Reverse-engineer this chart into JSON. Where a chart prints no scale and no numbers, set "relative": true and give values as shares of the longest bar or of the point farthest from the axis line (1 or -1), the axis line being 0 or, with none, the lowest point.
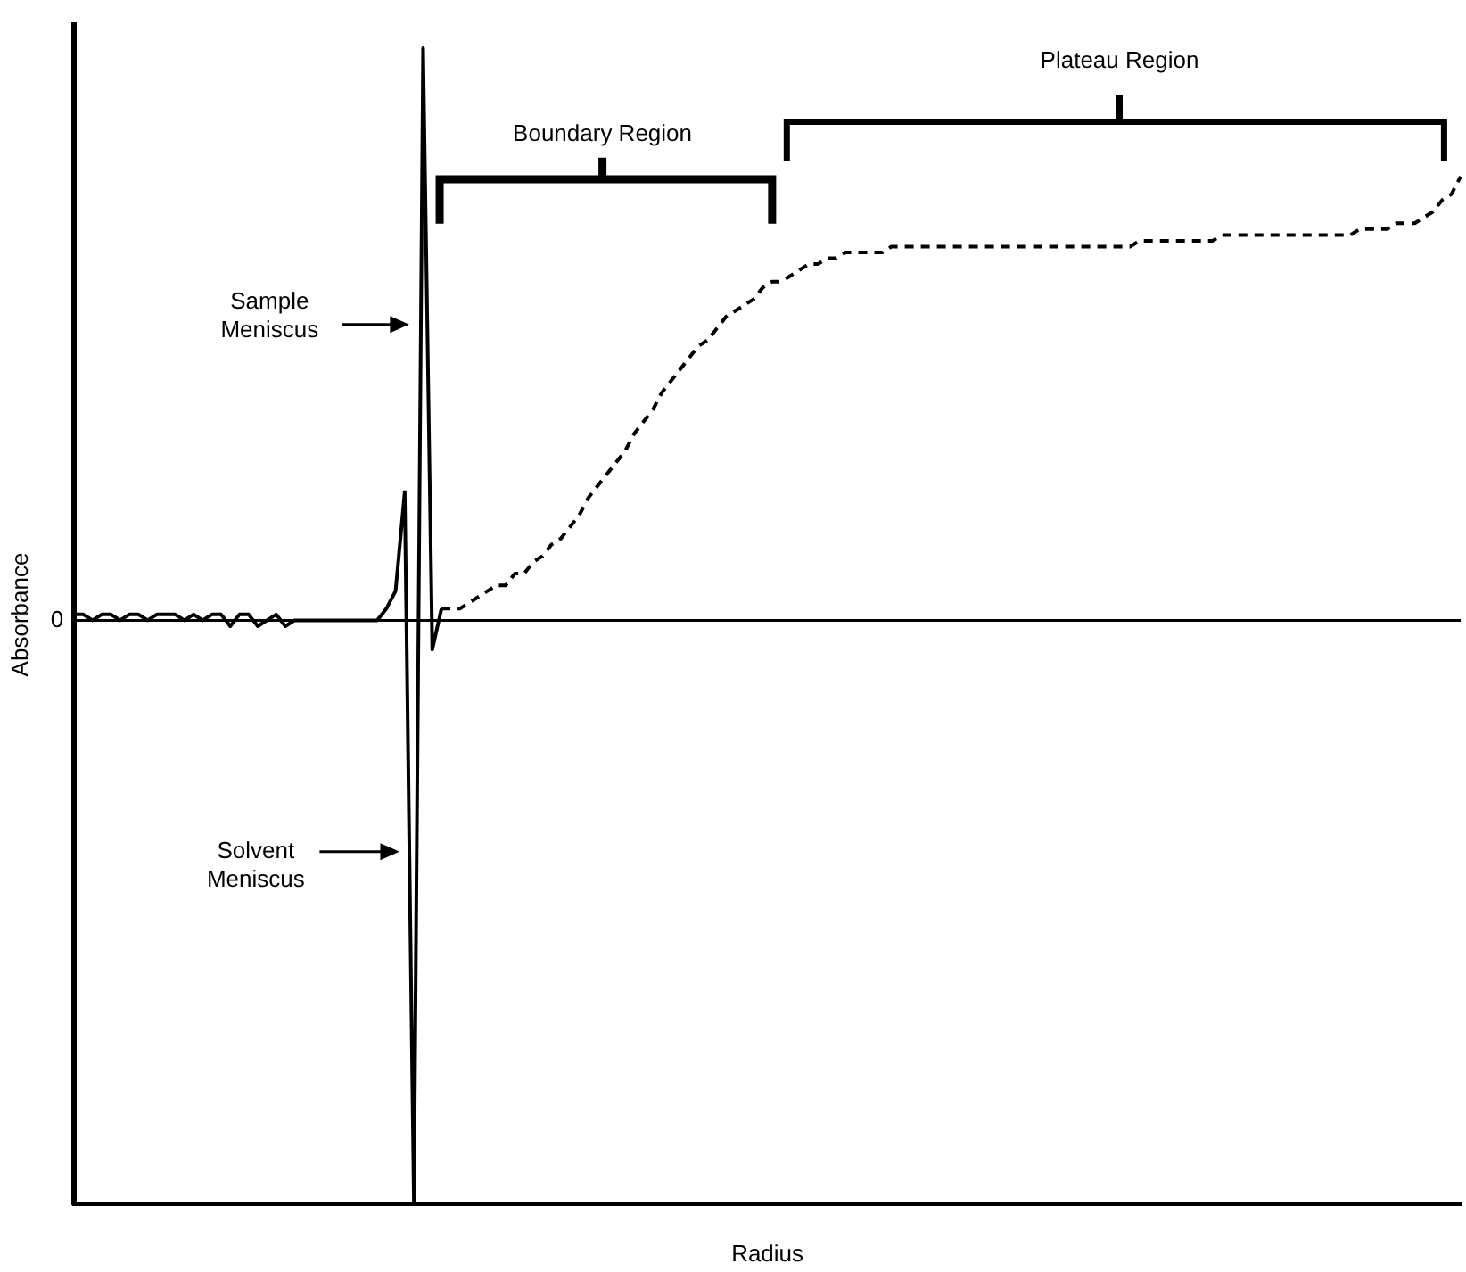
{
  "chart_data": {
    "type": "line",
    "relative": true,
    "xlabel": "Radius",
    "ylabel": "Absorbance",
    "grid": false,
    "legend": false,
    "marker": "none",
    "categories": [
      null,
      null,
      null,
      null,
      null,
      null,
      null,
      null,
      null,
      null,
      null,
      null,
      null,
      null,
      null,
      null,
      null,
      null,
      null,
      null,
      null,
      null,
      null,
      null,
      null,
      null,
      null,
      null,
      null,
      null,
      null,
      null,
      null,
      null,
      null,
      null,
      null,
      null,
      null,
      null,
      null,
      null,
      null,
      null,
      null,
      null,
      null,
      null,
      null,
      null,
      null,
      null,
      null,
      null,
      null,
      null,
      null,
      null,
      null,
      null,
      null,
      null,
      null,
      null,
      null,
      null,
      null,
      null,
      null,
      null,
      null,
      null,
      null,
      null,
      null,
      null,
      null,
      null,
      null,
      null,
      null,
      null,
      null,
      null,
      null,
      null,
      null,
      null,
      null,
      null,
      null,
      null,
      null,
      null,
      null,
      null,
      null,
      null,
      null,
      null,
      null,
      null,
      null,
      null,
      null,
      null,
      null,
      null,
      null,
      null,
      null,
      null,
      null,
      null,
      null,
      null,
      null,
      null,
      null,
      null,
      null,
      null,
      null,
      null,
      null,
      null,
      null,
      null,
      null,
      null,
      null,
      null,
      null,
      null,
      null,
      null,
      null,
      null,
      null,
      null,
      null,
      null,
      null,
      null,
      null,
      null,
      null,
      null,
      null,
      null,
      null,
      null
    ],
    "series": [
      {
        "color": "#000000",
        "line_style": "solid",
        "values": [
          0.01,
          0.01,
          0,
          0.01,
          0.01,
          0,
          0.01,
          0.01,
          0,
          0.01,
          0.01,
          0.01,
          0,
          0.01,
          0,
          0.01,
          0.01,
          -0.01,
          0.01,
          0.01,
          -0.01,
          0,
          0.01,
          -0.01,
          0,
          0,
          0,
          0,
          0,
          0,
          0,
          0,
          0,
          0,
          0.02,
          0.05,
          0.22,
          -1,
          0.98,
          -0.05,
          0.02,
          null,
          null,
          null,
          null,
          null,
          null,
          null,
          null,
          null,
          null,
          null,
          null,
          null,
          null,
          null,
          null,
          null,
          null,
          null,
          null,
          null,
          null,
          null,
          null,
          null,
          null,
          null,
          null,
          null,
          null,
          null,
          null,
          null,
          null,
          null,
          null,
          null,
          null,
          null,
          null,
          null,
          null,
          null,
          null,
          null,
          null,
          null,
          null,
          null,
          null,
          null,
          null,
          null,
          null,
          null,
          null,
          null,
          null,
          null,
          null,
          null,
          null,
          null,
          null,
          null,
          null,
          null,
          null,
          null,
          null,
          null,
          null,
          null,
          null,
          null,
          null,
          null,
          null,
          null,
          null,
          null,
          null,
          null,
          null,
          null,
          null,
          null,
          null,
          null,
          null,
          null,
          null,
          null,
          null,
          null,
          null,
          null,
          null,
          null,
          null,
          null,
          null,
          null,
          null,
          null,
          null,
          null,
          null,
          null,
          null,
          null
        ]
      },
      {
        "color": "#000000",
        "line_style": "dashed",
        "values": [
          null,
          null,
          null,
          null,
          null,
          null,
          null,
          null,
          null,
          null,
          null,
          null,
          null,
          null,
          null,
          null,
          null,
          null,
          null,
          null,
          null,
          null,
          null,
          null,
          null,
          null,
          null,
          null,
          null,
          null,
          null,
          null,
          null,
          null,
          null,
          null,
          null,
          null,
          null,
          null,
          0.02,
          0.02,
          0.02,
          0.03,
          0.04,
          0.05,
          0.06,
          0.06,
          0.08,
          0.08,
          0.1,
          0.11,
          0.13,
          0.14,
          0.16,
          0.18,
          0.21,
          0.23,
          0.25,
          0.27,
          0.29,
          0.32,
          0.34,
          0.36,
          0.39,
          0.41,
          0.43,
          0.45,
          0.47,
          0.48,
          0.5,
          0.52,
          0.53,
          0.54,
          0.55,
          0.57,
          0.58,
          0.58,
          0.59,
          0.6,
          0.61,
          0.61,
          0.62,
          0.62,
          0.63,
          0.63,
          0.63,
          0.63,
          0.63,
          0.64,
          0.64,
          0.64,
          0.64,
          0.64,
          0.64,
          0.64,
          0.64,
          0.64,
          0.64,
          0.64,
          0.64,
          0.64,
          0.64,
          0.64,
          0.64,
          0.64,
          0.64,
          0.64,
          0.64,
          0.64,
          0.64,
          0.64,
          0.64,
          0.64,
          0.64,
          0.64,
          0.65,
          0.65,
          0.65,
          0.65,
          0.65,
          0.65,
          0.65,
          0.65,
          0.65,
          0.66,
          0.66,
          0.66,
          0.66,
          0.66,
          0.66,
          0.66,
          0.66,
          0.66,
          0.66,
          0.66,
          0.66,
          0.66,
          0.66,
          0.66,
          0.67,
          0.67,
          0.67,
          0.67,
          0.68,
          0.68,
          0.68,
          0.69,
          0.7,
          0.72,
          0.73,
          0.76
        ]
      }
    ],
    "ref_lines": [
      {
        "axis": "y",
        "value": 0,
        "label": "0",
        "color": "#000000"
      }
    ],
    "annotations": [
      "Plateau Region",
      "Boundary Region",
      "Sample Meniscus",
      "Solvent Meniscus"
    ]
  }
}
